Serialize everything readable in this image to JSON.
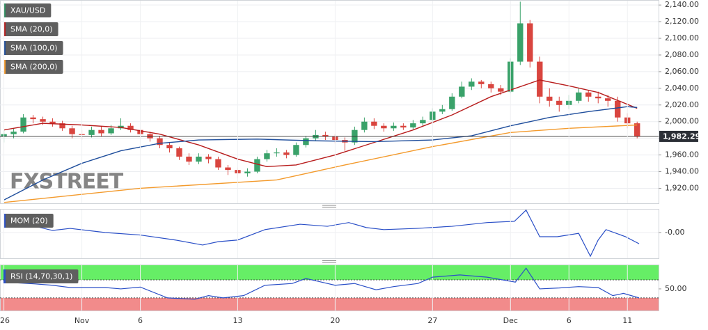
{
  "chart_data": [
    {
      "type": "candlestick",
      "name": "XAU/USD",
      "watermark": "FXSTREET",
      "up_color": "#3aa26a",
      "down_color": "#d9453f",
      "legend_color": "#2f8f60",
      "xlim": [
        -0.2,
        33.6
      ],
      "ylim": [
        1902,
        2146
      ],
      "grid": true,
      "yticks": [
        {
          "value": 1920,
          "label": "1,920.00"
        },
        {
          "value": 1940,
          "label": "1,940.00"
        },
        {
          "value": 1960,
          "label": "1,960.00"
        },
        {
          "value": 1980,
          "label": "1,980.00"
        },
        {
          "value": 2000,
          "label": "2,000.00"
        },
        {
          "value": 2020,
          "label": "2,020.00"
        },
        {
          "value": 2040,
          "label": "2,040.00"
        },
        {
          "value": 2060,
          "label": "2,060.00"
        },
        {
          "value": 2080,
          "label": "2,080.00"
        },
        {
          "value": 2100,
          "label": "2,100.00"
        },
        {
          "value": 2120,
          "label": "2,120.00"
        },
        {
          "value": 2140,
          "label": "2,140.00"
        }
      ],
      "last_price": {
        "value": 1982.29,
        "label": "1,982.29"
      },
      "x": [
        0,
        0.5,
        1,
        1.5,
        2,
        2.5,
        3,
        3.5,
        4,
        4.5,
        5,
        5.5,
        6,
        6.5,
        7,
        7.5,
        8,
        8.5,
        9,
        9.5,
        10,
        10.5,
        11,
        11.5,
        12,
        12.5,
        13,
        13.5,
        14,
        14.5,
        15,
        15.5,
        16,
        16.5,
        17,
        17.5,
        18,
        18.5,
        19,
        19.5,
        20,
        20.5,
        21,
        21.5,
        22,
        22.5,
        23,
        23.5,
        24,
        24.5,
        25,
        25.5,
        26,
        26.5,
        27,
        27.5,
        28,
        28.5,
        29,
        29.5,
        30,
        30.5,
        31,
        31.5,
        32,
        32.5
      ],
      "open": [
        1982,
        1985,
        1988,
        2005,
        2003,
        2000,
        1998,
        1992,
        1985,
        1984,
        1990,
        1986,
        1992,
        1995,
        1990,
        1985,
        1980,
        1972,
        1968,
        1958,
        1952,
        1958,
        1955,
        1945,
        1942,
        1938,
        1940,
        1955,
        1962,
        1963,
        1960,
        1972,
        1980,
        1984,
        1982,
        1978,
        1975,
        1990,
        2000,
        1995,
        1992,
        1995,
        1993,
        1998,
        2002,
        2012,
        2015,
        2030,
        2042,
        2048,
        2045,
        2040,
        2036,
        2072,
        2118,
        2072,
        2030,
        2025,
        2020,
        2025,
        2035,
        2030,
        2028,
        2025,
        2005,
        1998
      ],
      "high": [
        1990,
        1992,
        2009,
        2008,
        2006,
        2004,
        2001,
        1995,
        1990,
        1994,
        1994,
        1996,
        2004,
        1998,
        1993,
        1988,
        1983,
        1975,
        1970,
        1962,
        1962,
        1961,
        1958,
        1948,
        1945,
        1944,
        1958,
        1966,
        1968,
        1966,
        1975,
        1983,
        1990,
        1988,
        1985,
        1981,
        1994,
        2005,
        2004,
        1998,
        1999,
        1998,
        2002,
        2006,
        2016,
        2020,
        2034,
        2048,
        2052,
        2050,
        2048,
        2044,
        2076,
        2144,
        2122,
        2078,
        2040,
        2030,
        2032,
        2040,
        2038,
        2036,
        2032,
        2030,
        2010,
        2000
      ],
      "low": [
        1975,
        1980,
        1986,
        1998,
        1996,
        1994,
        1989,
        1980,
        1978,
        1981,
        1982,
        1984,
        1990,
        1987,
        1982,
        1976,
        1968,
        1963,
        1954,
        1948,
        1949,
        1950,
        1942,
        1936,
        1932,
        1934,
        1938,
        1952,
        1958,
        1956,
        1958,
        1969,
        1977,
        1978,
        1974,
        1965,
        1972,
        1987,
        1991,
        1988,
        1989,
        1990,
        1991,
        1995,
        2000,
        2009,
        2013,
        2028,
        2038,
        2040,
        2035,
        2032,
        2034,
        2068,
        2065,
        2022,
        2018,
        2012,
        2015,
        2022,
        2024,
        2022,
        2018,
        2000,
        1992,
        1980
      ],
      "close": [
        1985,
        1988,
        2005,
        2003,
        2000,
        1998,
        1992,
        1985,
        1984,
        1990,
        1986,
        1992,
        1995,
        1990,
        1985,
        1980,
        1972,
        1968,
        1958,
        1952,
        1958,
        1955,
        1945,
        1942,
        1938,
        1940,
        1955,
        1962,
        1963,
        1960,
        1972,
        1980,
        1984,
        1982,
        1978,
        1975,
        1990,
        2000,
        1995,
        1992,
        1995,
        1993,
        1998,
        2002,
        2012,
        2015,
        2030,
        2042,
        2048,
        2045,
        2040,
        2036,
        2072,
        2118,
        2072,
        2030,
        2025,
        2020,
        2025,
        2035,
        2030,
        2028,
        2025,
        2005,
        1998,
        1982.29
      ],
      "series": [
        {
          "name": "SMA (20,0)",
          "color": "#b81d1d",
          "x": [
            0,
            2,
            4,
            6,
            8,
            10,
            12,
            13.5,
            15,
            17,
            19,
            21,
            23,
            25,
            27.5,
            29,
            30.5,
            32.5
          ],
          "values": [
            1990,
            1998,
            1996,
            1993,
            1985,
            1972,
            1955,
            1946,
            1948,
            1960,
            1975,
            1990,
            2008,
            2030,
            2050,
            2043,
            2035,
            2016
          ]
        },
        {
          "name": "SMA (100,0)",
          "color": "#1f4e9c",
          "x": [
            0,
            2,
            4,
            6,
            8,
            10,
            13,
            16,
            19,
            22,
            24,
            26,
            28,
            30,
            32,
            32.5
          ],
          "values": [
            1906,
            1930,
            1950,
            1965,
            1974,
            1978,
            1979,
            1977,
            1976,
            1978,
            1983,
            1995,
            2005,
            2012,
            2018,
            2017
          ]
        },
        {
          "name": "SMA (200,0)",
          "color": "#f39a2c",
          "x": [
            0,
            7,
            14,
            17.5,
            22,
            26,
            29,
            32.5
          ],
          "values": [
            1903,
            1920,
            1930,
            1948,
            1970,
            1987,
            1992,
            1996
          ]
        }
      ]
    },
    {
      "type": "line",
      "xlim": [
        -0.2,
        33.6
      ],
      "ylim": [
        -62,
        57
      ],
      "grid": true,
      "yticks": [
        {
          "value": 0,
          "label": "-0.00"
        }
      ],
      "series": [
        {
          "name": "MOM (20)",
          "color": "#2a4fc7",
          "x": [
            0,
            1.6,
            2.5,
            3.4,
            5.2,
            7,
            8.8,
            10.2,
            11,
            12,
            13.4,
            15.2,
            16.6,
            17.7,
            18.6,
            19.5,
            21.2,
            23,
            24.8,
            26.2,
            26.8,
            27.5,
            28.4,
            29.5,
            30.1,
            30.5,
            30.9,
            31.9,
            32.6
          ],
          "values": [
            20,
            15,
            5,
            10,
            0,
            -6,
            -18,
            -30,
            -22,
            -18,
            7,
            20,
            15,
            24,
            12,
            7,
            10,
            15,
            24,
            27,
            54,
            -10,
            -10,
            -2,
            -57,
            -18,
            7,
            -10,
            -27
          ]
        }
      ]
    },
    {
      "type": "line",
      "xlim": [
        -0.2,
        33.6
      ],
      "ylim": [
        2,
        104
      ],
      "grid": false,
      "yticks": [
        {
          "value": 50,
          "label": "50.00"
        }
      ],
      "overbought": 70,
      "oversold": 30,
      "overbought_color": "#66ee66",
      "oversold_color": "#f28b8b",
      "xticks": [
        {
          "value": 0,
          "label": "26"
        },
        {
          "value": 4,
          "label": "Nov"
        },
        {
          "value": 7,
          "label": "6"
        },
        {
          "value": 12,
          "label": "13"
        },
        {
          "value": 17,
          "label": "20"
        },
        {
          "value": 22,
          "label": "27"
        },
        {
          "value": 26,
          "label": "Dec"
        },
        {
          "value": 29,
          "label": "6"
        },
        {
          "value": 32,
          "label": "11"
        }
      ],
      "series": [
        {
          "name": "RSI (14,70,30,1)",
          "color": "#2a4fc7",
          "x": [
            0,
            1.6,
            2.5,
            3.4,
            5.2,
            6,
            7,
            8.4,
            9.8,
            10.5,
            11.25,
            12.3,
            13.4,
            14.8,
            15.5,
            16.2,
            17,
            18,
            19.1,
            20,
            21.25,
            22,
            23.4,
            24.8,
            26.25,
            26.8,
            27.5,
            28.5,
            29.5,
            30.5,
            31.25,
            31.8,
            32.6
          ],
          "values": [
            65,
            61,
            58,
            53,
            53,
            50,
            54,
            30,
            27,
            35,
            30,
            35,
            58,
            62,
            73,
            66,
            58,
            62,
            48,
            55,
            62,
            76,
            81,
            76,
            65,
            96,
            50,
            52,
            55,
            53,
            35,
            40,
            30
          ]
        }
      ]
    }
  ]
}
